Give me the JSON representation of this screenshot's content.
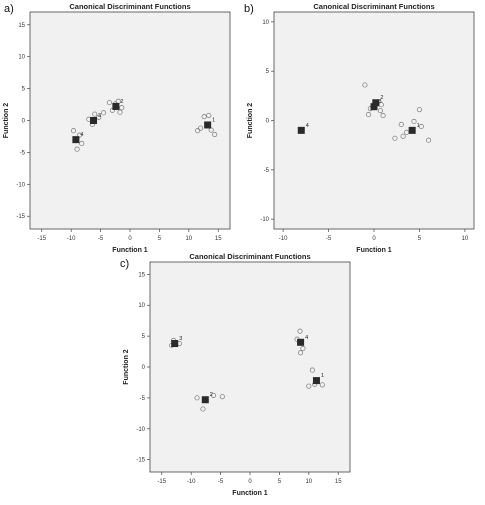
{
  "chart_data": [
    {
      "panel_label": "a)",
      "type": "scatter",
      "title": "Canonical Discriminant Functions",
      "xlabel": "Function 1",
      "ylabel": "Function 2",
      "xlim": [
        -17,
        17
      ],
      "ylim": [
        -17,
        17
      ],
      "xticks": [
        -15,
        -10,
        -5,
        0,
        5,
        10,
        15
      ],
      "yticks": [
        -15,
        -10,
        -5,
        0,
        5,
        10,
        15
      ],
      "centroids": [
        {
          "label": "1",
          "x": 13.2,
          "y": -0.7
        },
        {
          "label": "2",
          "x": -2.4,
          "y": 2.2
        },
        {
          "label": "3",
          "x": -6.2,
          "y": 0.0
        },
        {
          "label": "4",
          "x": -9.2,
          "y": -3.0
        }
      ],
      "points": [
        [
          12.0,
          -1.2
        ],
        [
          12.6,
          0.6
        ],
        [
          13.4,
          0.8
        ],
        [
          13.8,
          -1.5
        ],
        [
          14.4,
          -2.2
        ],
        [
          11.5,
          -1.6
        ],
        [
          -3.5,
          2.8
        ],
        [
          -2.0,
          3.0
        ],
        [
          -1.4,
          2.0
        ],
        [
          -1.7,
          1.3
        ],
        [
          -3.0,
          1.6
        ],
        [
          -2.5,
          2.6
        ],
        [
          -7.0,
          0.2
        ],
        [
          -6.4,
          -0.6
        ],
        [
          -5.3,
          0.5
        ],
        [
          -6.0,
          1.0
        ],
        [
          -4.5,
          1.2
        ],
        [
          -9.6,
          -1.6
        ],
        [
          -8.6,
          -2.3
        ],
        [
          -9.0,
          -4.5
        ],
        [
          -8.2,
          -3.6
        ]
      ]
    },
    {
      "panel_label": "b)",
      "type": "scatter",
      "title": "Canonical Discriminant Functions",
      "xlabel": "Function 1",
      "ylabel": "Function 2",
      "xlim": [
        -11,
        11
      ],
      "ylim": [
        -11,
        11
      ],
      "xticks": [
        -10,
        -5,
        0,
        5,
        10
      ],
      "yticks": [
        -10,
        -5,
        0,
        5,
        10
      ],
      "centroids": [
        {
          "label": "1",
          "x": 4.2,
          "y": -1.0
        },
        {
          "label": "2",
          "x": 0.2,
          "y": 1.8
        },
        {
          "label": "3",
          "x": 0.0,
          "y": 1.4
        },
        {
          "label": "4",
          "x": -8.0,
          "y": -1.0
        }
      ],
      "points": [
        [
          -1.0,
          3.6
        ],
        [
          -0.4,
          1.2
        ],
        [
          0.7,
          1.0
        ],
        [
          1.0,
          0.5
        ],
        [
          0.8,
          1.6
        ],
        [
          -0.6,
          0.6
        ],
        [
          3.0,
          -0.4
        ],
        [
          3.2,
          -1.6
        ],
        [
          4.4,
          -0.1
        ],
        [
          5.0,
          1.1
        ],
        [
          5.2,
          -0.6
        ],
        [
          6.0,
          -2.0
        ],
        [
          2.3,
          -1.8
        ],
        [
          3.6,
          -1.2
        ]
      ]
    },
    {
      "panel_label": "c)",
      "type": "scatter",
      "title": "Canonical Discriminant Functions",
      "xlabel": "Function 1",
      "ylabel": "Function 2",
      "xlim": [
        -17,
        17
      ],
      "ylim": [
        -17,
        17
      ],
      "xticks": [
        -15,
        -10,
        -5,
        0,
        5,
        10,
        15
      ],
      "xtick_labels": [
        "-15",
        "-10",
        "-5",
        "0",
        "5",
        "10",
        "15"
      ],
      "yticks": [
        -15,
        -10,
        -5,
        0,
        5,
        10,
        15
      ],
      "centroids": [
        {
          "label": "1",
          "x": 11.3,
          "y": -2.2
        },
        {
          "label": "2",
          "x": -7.6,
          "y": -5.3
        },
        {
          "label": "3",
          "x": -12.8,
          "y": 3.8
        },
        {
          "label": "4",
          "x": 8.6,
          "y": 4.0
        }
      ],
      "points": [
        [
          10.6,
          -0.5
        ],
        [
          11.0,
          -2.8
        ],
        [
          12.3,
          -2.9
        ],
        [
          10.0,
          -3.1
        ],
        [
          -9.0,
          -5.0
        ],
        [
          -8.0,
          -6.8
        ],
        [
          -6.2,
          -4.6
        ],
        [
          -4.7,
          -4.8
        ],
        [
          -13.3,
          3.5
        ],
        [
          -12.0,
          3.8
        ],
        [
          -13.0,
          4.3
        ],
        [
          8.5,
          5.8
        ],
        [
          9.0,
          3.0
        ],
        [
          8.6,
          2.3
        ],
        [
          8.0,
          4.5
        ]
      ]
    }
  ]
}
